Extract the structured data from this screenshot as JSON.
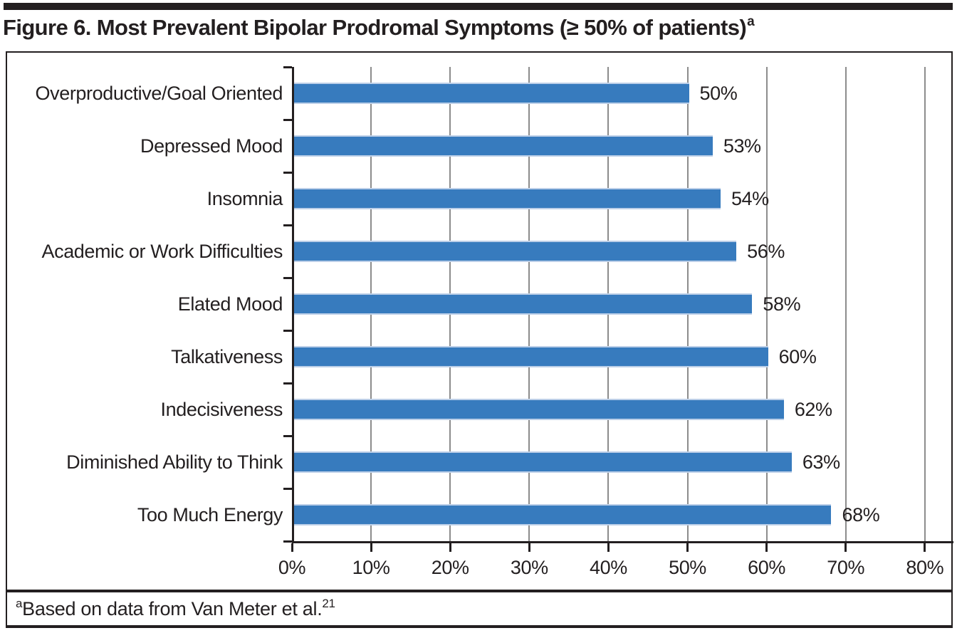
{
  "title": {
    "text": "Figure 6. Most Prevalent Bipolar Prodromal Symptoms (≥ 50% of patients)",
    "superscript": "a"
  },
  "footnote": {
    "superscript_prefix": "a",
    "text": "Based on data from Van Meter et al.",
    "reference_superscript": "21"
  },
  "colors": {
    "bar": "#377bbe",
    "bar_edge": "#bccfe8",
    "gridline": "#8c8c8c",
    "axis": "#231f20",
    "text": "#231f20",
    "top_rule": "#231f20"
  },
  "chart_data": {
    "type": "bar",
    "orientation": "horizontal",
    "title": "Figure 6. Most Prevalent Bipolar Prodromal Symptoms (≥ 50% of patients)",
    "categories": [
      "Overproductive/Goal Oriented",
      "Depressed Mood",
      "Insomnia",
      "Academic or Work Difficulties",
      "Elated Mood",
      "Talkativeness",
      "Indecisiveness",
      "Diminished Ability to Think",
      "Too Much Energy"
    ],
    "values": [
      50,
      53,
      54,
      56,
      58,
      60,
      62,
      63,
      68
    ],
    "data_labels": [
      "50%",
      "53%",
      "54%",
      "56%",
      "58%",
      "60%",
      "62%",
      "63%",
      "68%"
    ],
    "x_ticks": [
      "0%",
      "10%",
      "20%",
      "30%",
      "40%",
      "50%",
      "60%",
      "70%",
      "80%"
    ],
    "x_tick_values": [
      0,
      10,
      20,
      30,
      40,
      50,
      60,
      70,
      80
    ],
    "xlim": [
      0,
      80
    ],
    "xlabel": "",
    "ylabel": "",
    "grid": "vertical",
    "legend": "none",
    "source_note": "Based on data from Van Meter et al."
  }
}
